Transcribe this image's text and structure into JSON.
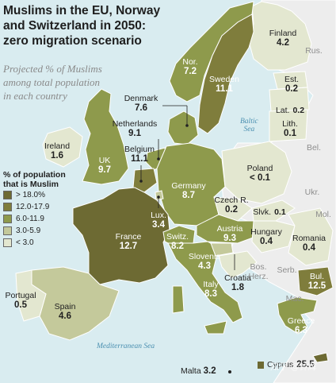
{
  "title": [
    "Muslims in the EU, Norway",
    "and Switzerland in 2050:",
    "zero migration scenario"
  ],
  "subtitle": [
    "Projected % of Muslims",
    "among total population",
    "in each country"
  ],
  "legend": {
    "title": [
      "% of population",
      "that is Muslim"
    ],
    "items": [
      {
        "label": "> 18.0%",
        "color": "#6d6a33"
      },
      {
        "label": "12.0-17.9",
        "color": "#7f7d3c"
      },
      {
        "label": "6.0-11.9",
        "color": "#8e9a4c"
      },
      {
        "label": "3.0-5.9",
        "color": "#c4c99b"
      },
      {
        "label": "< 3.0",
        "color": "#e3e7d0"
      }
    ]
  },
  "colors": {
    "sea": "#d9ecf0",
    "non_eu": "#ededed",
    "border": "#ffffff"
  },
  "countries": {
    "finland": {
      "name": "Finland",
      "value": "4.2"
    },
    "norway": {
      "name": "Nor.",
      "value": "7.2"
    },
    "sweden": {
      "name": "Sweden",
      "value": "11.1"
    },
    "estonia": {
      "name": "Est.",
      "value": "0.2"
    },
    "latvia": {
      "name": "Lat.",
      "value": "0.2"
    },
    "lithuania": {
      "name": "Lith.",
      "value": "0.1"
    },
    "denmark": {
      "name": "Denmark",
      "value": "7.6"
    },
    "netherlands": {
      "name": "Netherlands",
      "value": "9.1"
    },
    "ireland": {
      "name": "Ireland",
      "value": "1.6"
    },
    "uk": {
      "name": "UK",
      "value": "9.7"
    },
    "belgium": {
      "name": "Belgium",
      "value": "11.1"
    },
    "germany": {
      "name": "Germany",
      "value": "8.7"
    },
    "poland": {
      "name": "Poland",
      "value": "< 0.1"
    },
    "czech": {
      "name": "Czech R.",
      "value": "0.2"
    },
    "slovakia": {
      "name": "Slvk.",
      "value": "0.1"
    },
    "luxembourg": {
      "name": "Lux.",
      "value": "3.4"
    },
    "austria": {
      "name": "Austria",
      "value": "9.3"
    },
    "hungary": {
      "name": "Hungary",
      "value": "0.4"
    },
    "romania": {
      "name": "Romania",
      "value": "0.4"
    },
    "france": {
      "name": "France",
      "value": "12.7"
    },
    "switzerland": {
      "name": "Switz.",
      "value": "8.2"
    },
    "slovenia": {
      "name": "Slovenia",
      "value": "4.3"
    },
    "croatia": {
      "name": "Croatia",
      "value": "1.8"
    },
    "bulgaria": {
      "name": "Bul.",
      "value": "12.5"
    },
    "italy": {
      "name": "Italy",
      "value": "8.3"
    },
    "portugal": {
      "name": "Portugal",
      "value": "0.5"
    },
    "spain": {
      "name": "Spain",
      "value": "4.6"
    },
    "greece": {
      "name": "Greece",
      "value": "6.3"
    },
    "cyprus": {
      "name": "Cyprus",
      "value": "25.5"
    },
    "malta": {
      "name": "Malta",
      "value": "3.2"
    }
  },
  "non_eu_labels": {
    "russia": "Rus.",
    "belarus": "Bel.",
    "ukraine": "Ukr.",
    "moldova": "Mol.",
    "serbia": "Serb.",
    "bosnia": "Bos.",
    "herz": "Herz.",
    "macedonia": "Mac."
  },
  "seas": {
    "baltic": [
      "Baltic",
      "Sea"
    ],
    "mediterranean": "Mediterranean Sea"
  },
  "watermark": "知乎 @钟辉"
}
